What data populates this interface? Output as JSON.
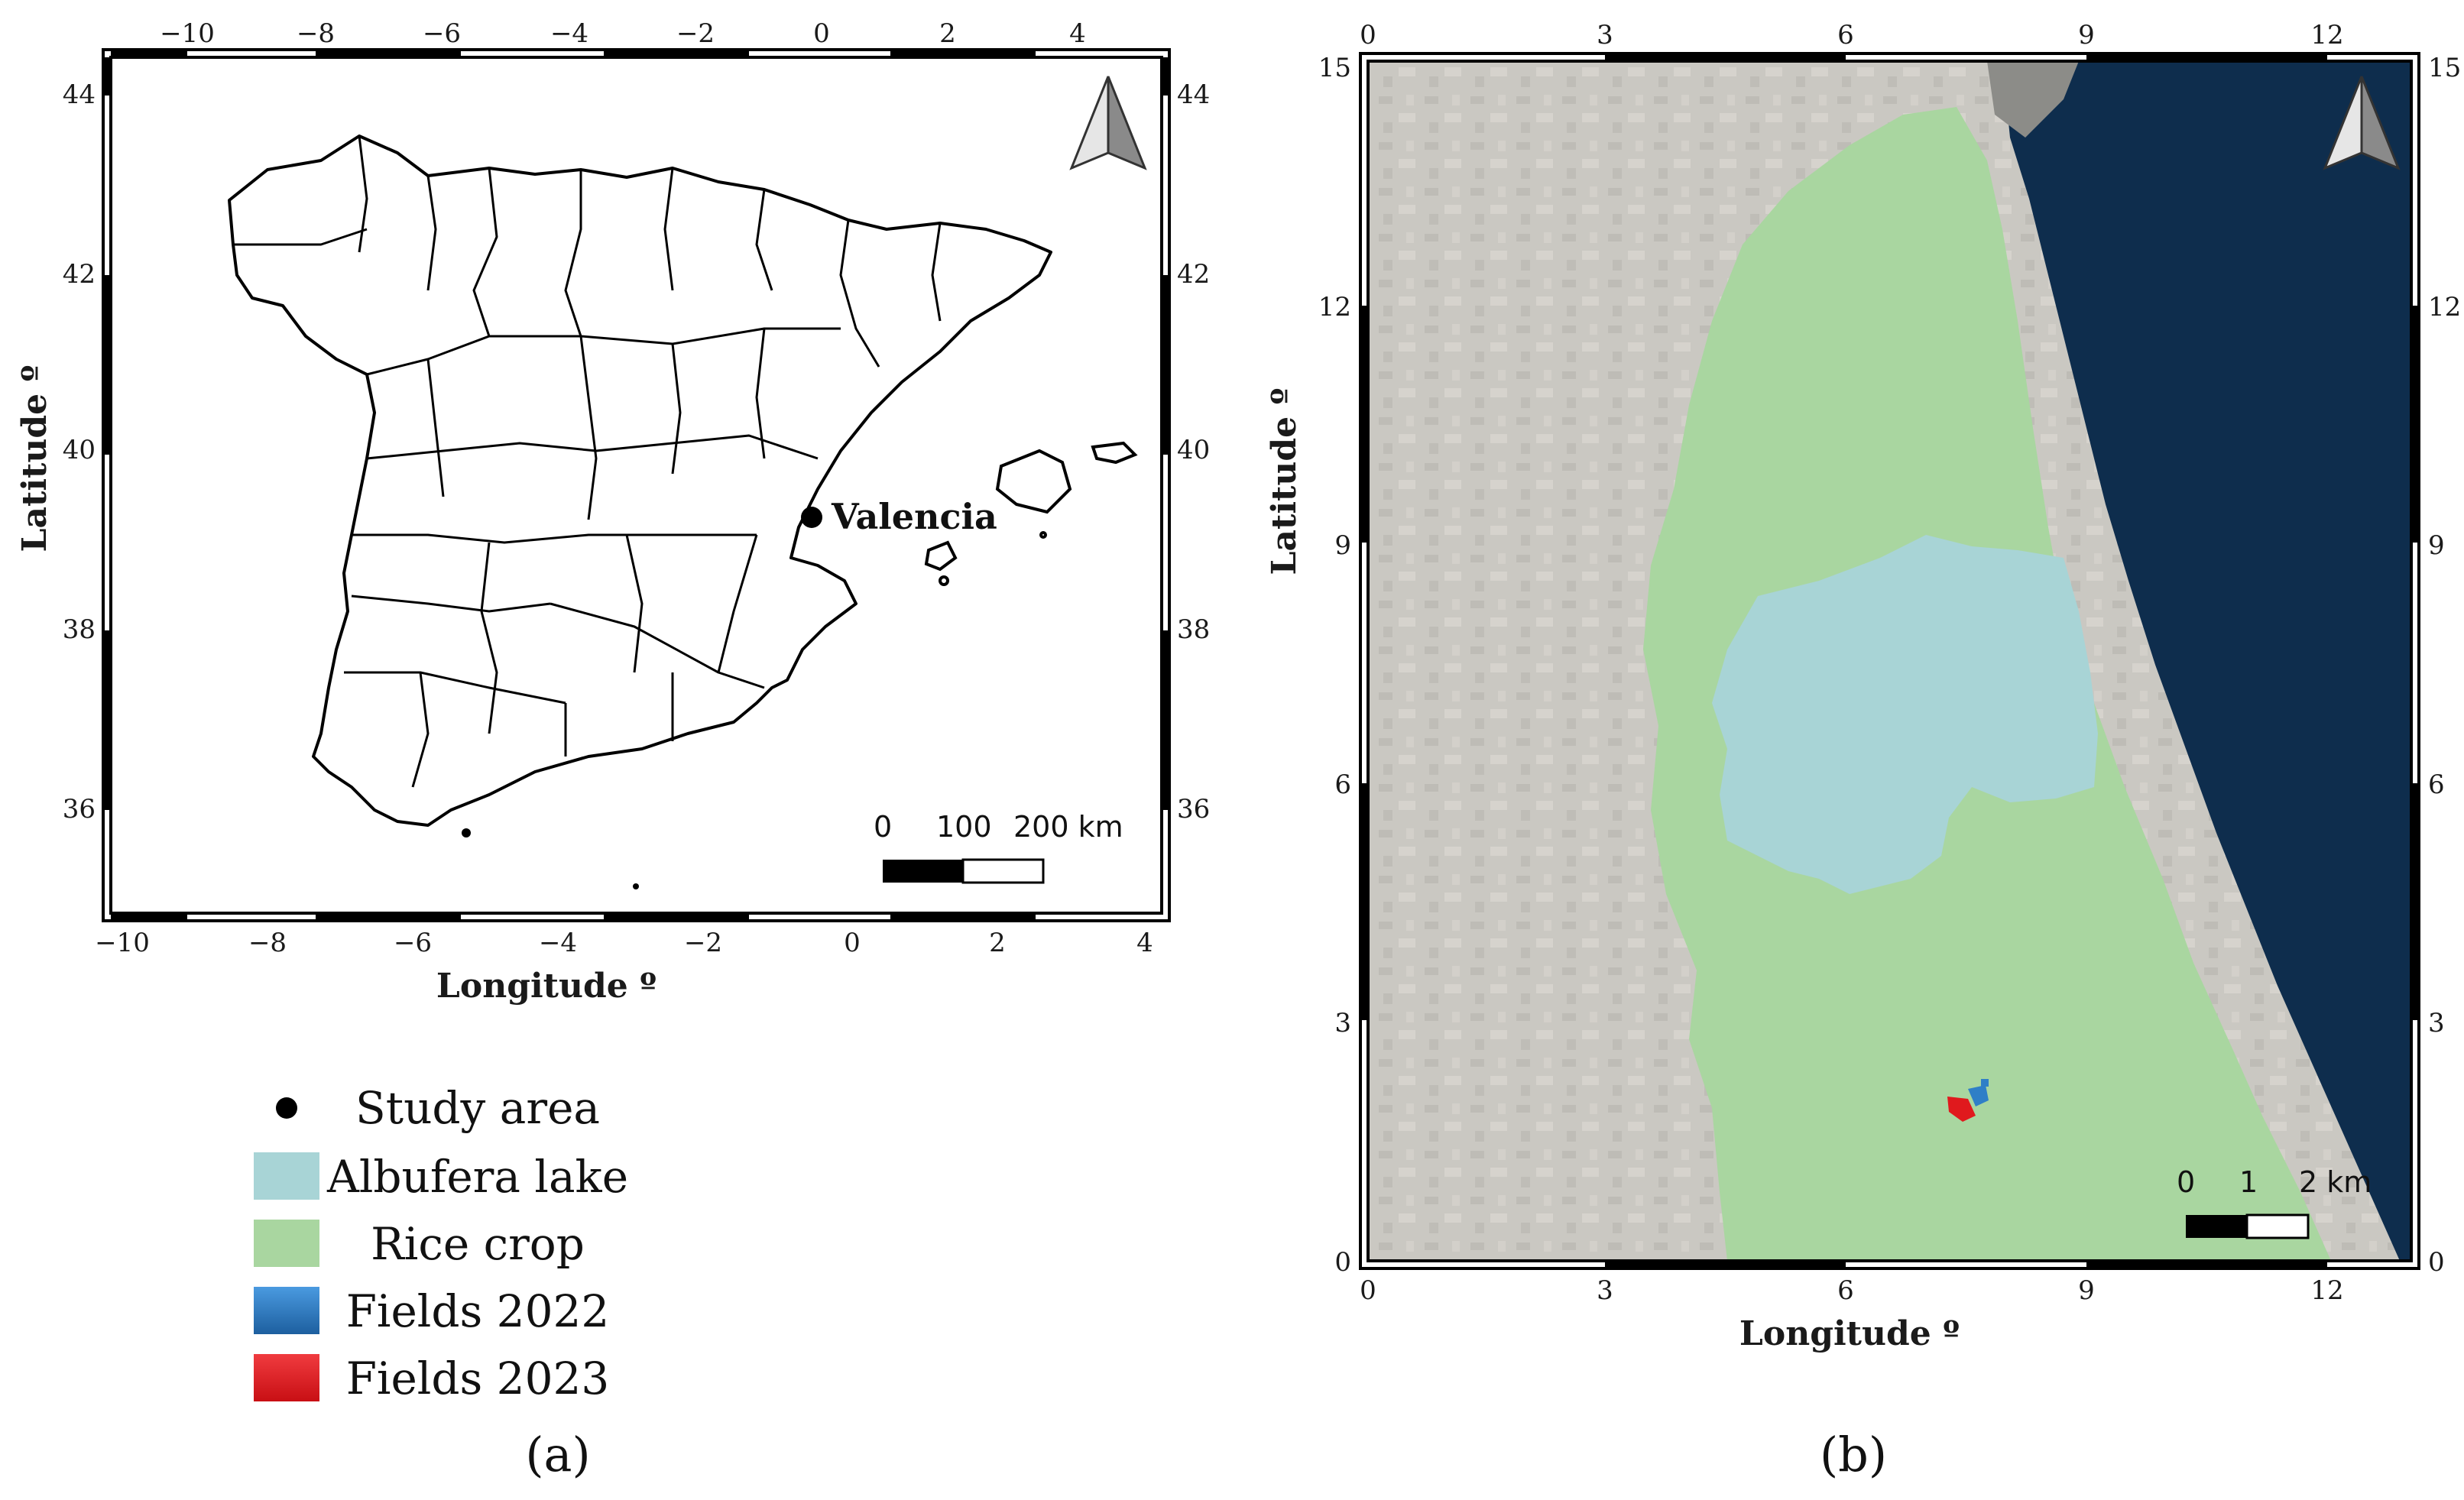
{
  "panel_a": {
    "label": "(a)",
    "x_axis_title": "Longitude º",
    "y_axis_title": "Latitude º",
    "x_ticks": [
      "−10",
      "−8",
      "−6",
      "−4",
      "−2",
      "0",
      "2",
      "4"
    ],
    "y_ticks": [
      "44",
      "42",
      "40",
      "38",
      "36"
    ],
    "city_label": "Valencia",
    "scale_labels": [
      "0",
      "100",
      "200 km"
    ]
  },
  "panel_b": {
    "label": "(b)",
    "x_axis_title": "Longitude º",
    "y_axis_title": "Latitude º",
    "x_ticks": [
      "0",
      "3",
      "6",
      "9",
      "12"
    ],
    "y_ticks": [
      "0",
      "3",
      "6",
      "9",
      "12",
      "15"
    ],
    "scale_labels": [
      "0",
      "1",
      "2 km"
    ]
  },
  "legend": {
    "items": [
      {
        "label": "Study area",
        "color": "#000000",
        "symbol": "dot"
      },
      {
        "label": "Albufera lake",
        "color": "#a8d4d6",
        "symbol": "box"
      },
      {
        "label": "Rice crop",
        "color": "#a9d6a0",
        "symbol": "box"
      },
      {
        "label": "Fields 2022",
        "color": "#2f7fc7",
        "symbol": "box"
      },
      {
        "label": "Fields 2023",
        "color": "#e0191d",
        "symbol": "box"
      }
    ]
  },
  "colors": {
    "sea": "#0e2d4d",
    "lake": "#a8d4d6",
    "rice": "#a9d6a0",
    "urban": "#b7b4ab",
    "fields_2022": "#2f7fc7",
    "fields_2023": "#e0191d"
  },
  "icons": [
    "north-arrow-icon",
    "north-arrow-icon"
  ]
}
